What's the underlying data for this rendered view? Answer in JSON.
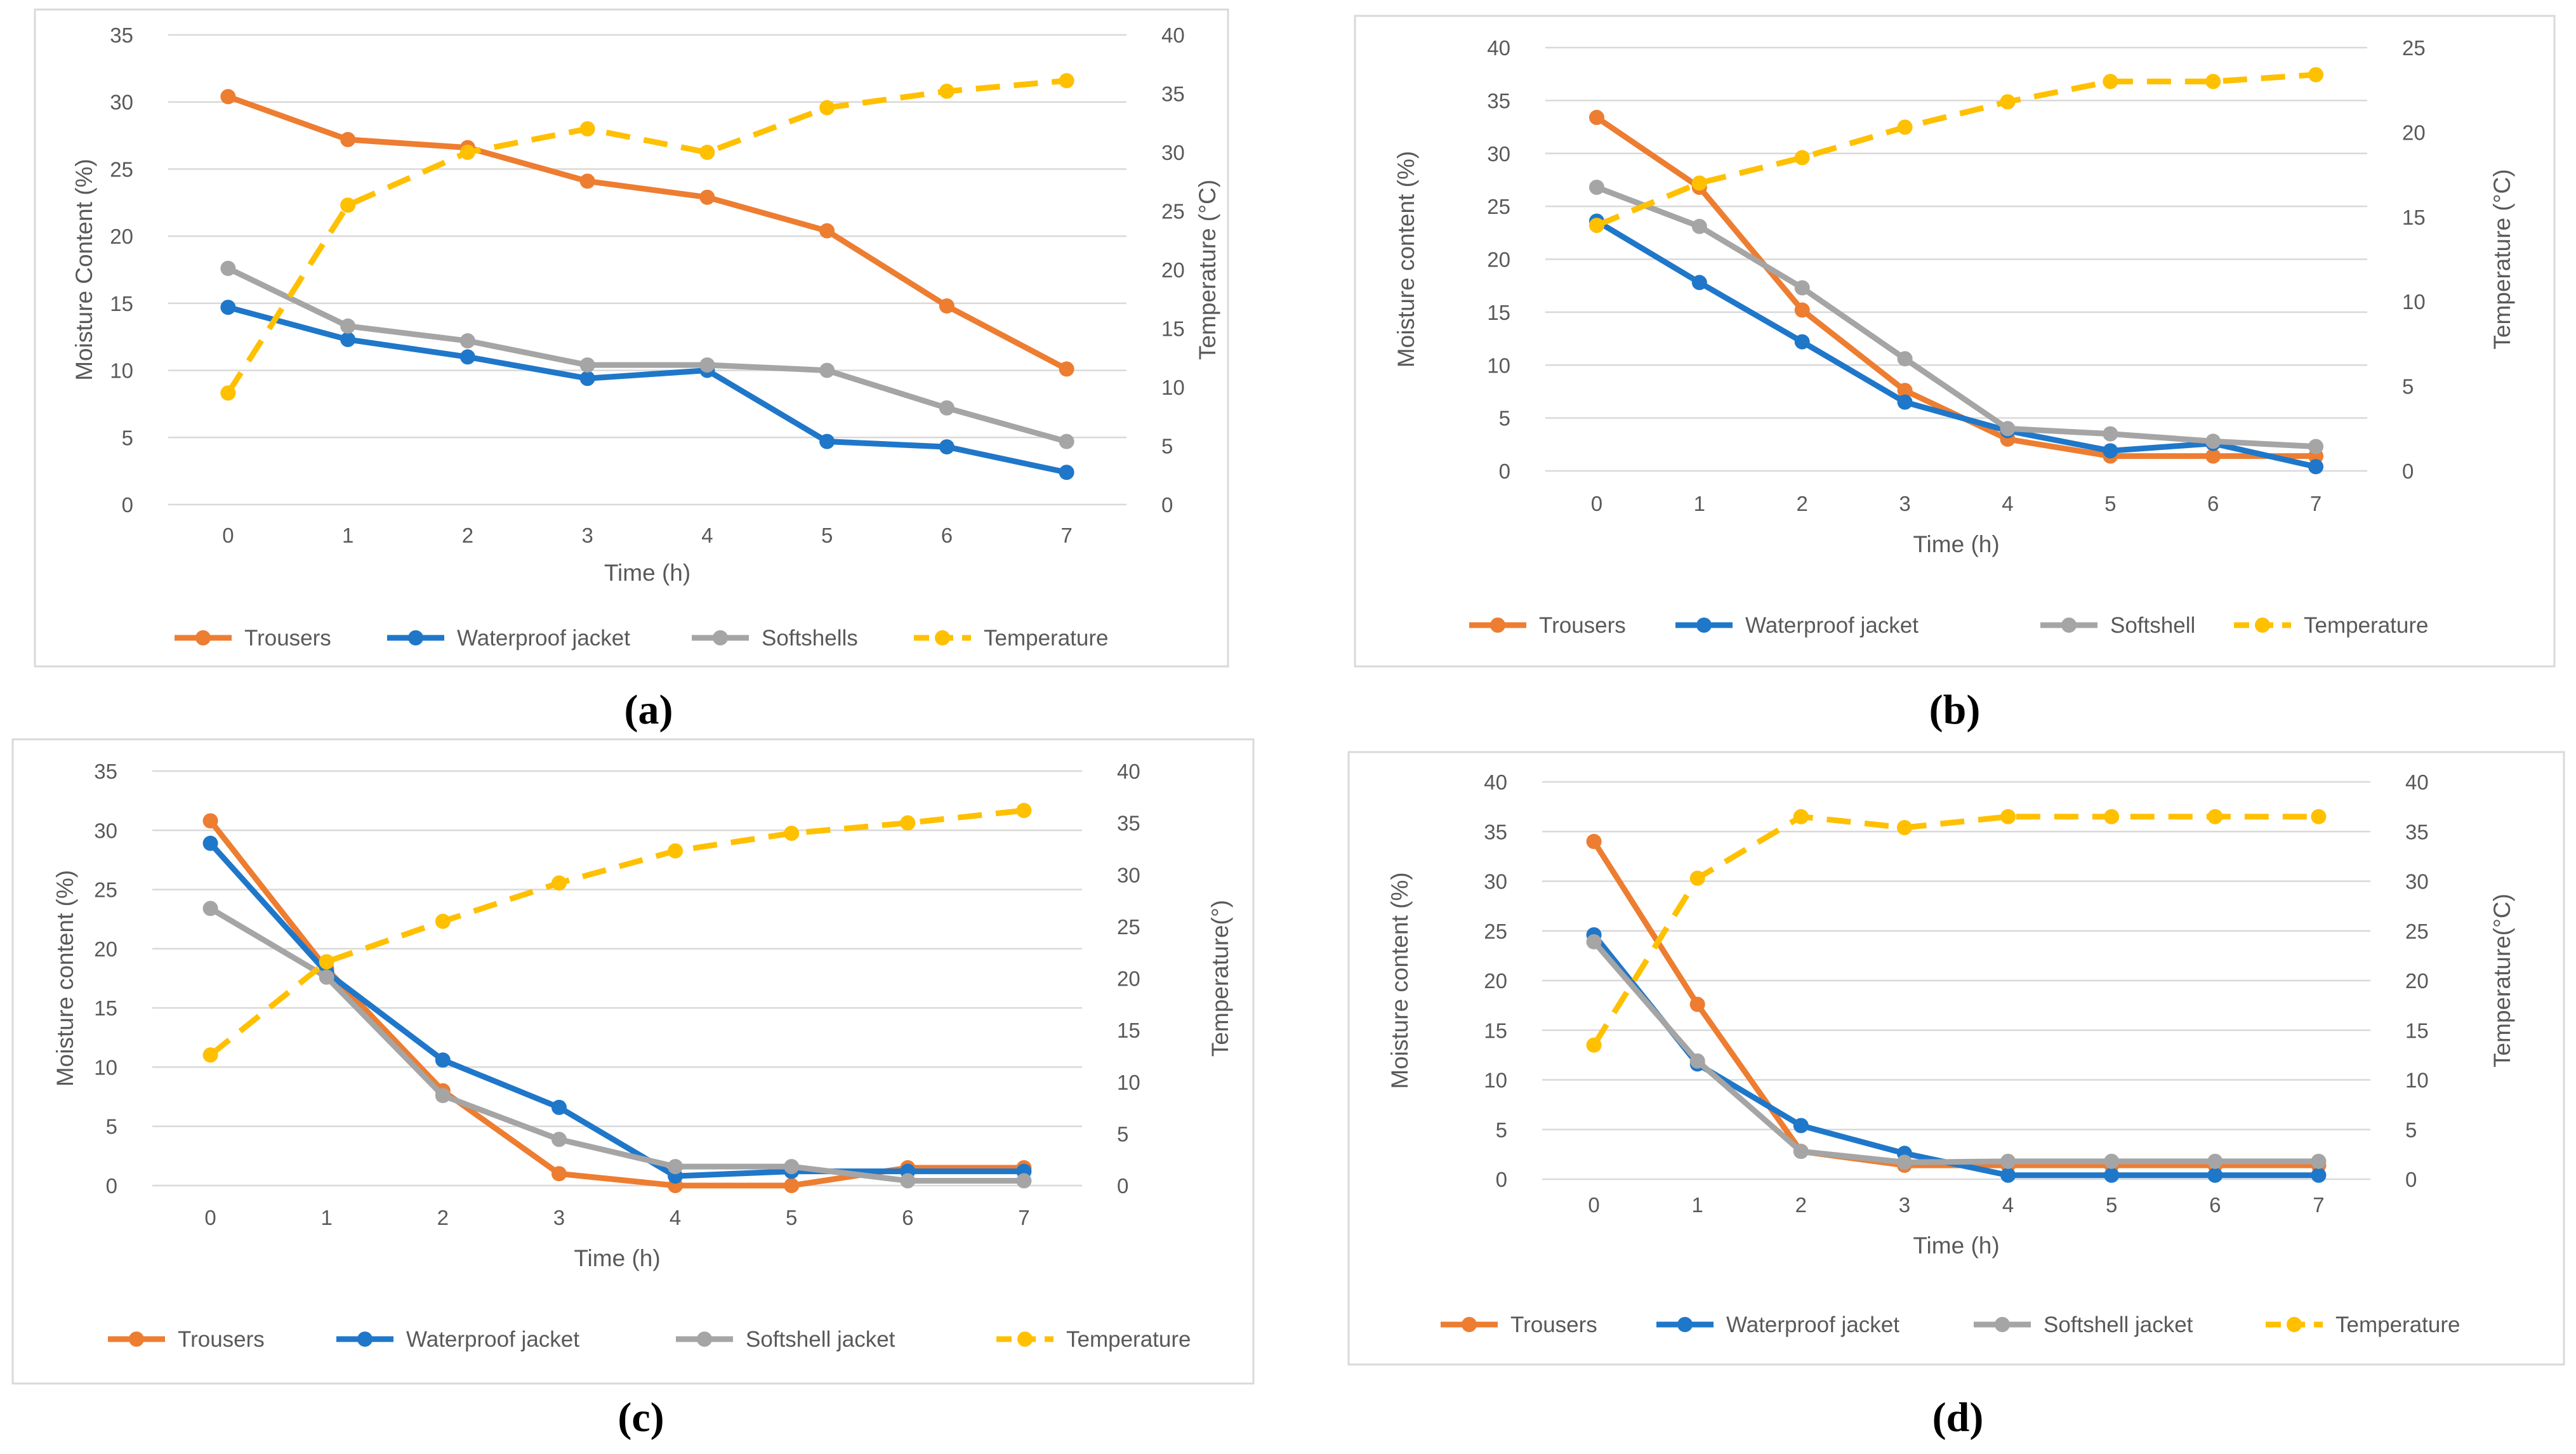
{
  "colors": {
    "Trousers": "#ed7d31",
    "Waterproof jacket": "#1f77c9",
    "Softshell": "#a5a5a5",
    "Temperature": "#ffc000"
  },
  "chart_data": [
    {
      "type": "line",
      "panel_label": "(a)",
      "x": [
        0,
        1,
        2,
        3,
        4,
        5,
        6,
        7
      ],
      "x_ticks": [
        "0",
        "1",
        "2",
        "3",
        "4",
        "5",
        "6",
        "7"
      ],
      "xlabel": "Time (h)",
      "ylabel": "Moisture Content (%)",
      "y2label": "Temperature (°C)",
      "ylim": [
        0,
        35
      ],
      "y_ticks": [
        "0",
        "5",
        "10",
        "15",
        "20",
        "25",
        "30",
        "35"
      ],
      "y2lim": [
        0,
        40
      ],
      "y2_ticks": [
        "0",
        "5",
        "10",
        "15",
        "20",
        "25",
        "30",
        "35",
        "40"
      ],
      "legend_position": "bottom",
      "series": [
        {
          "name": "Trousers",
          "color_key": "Trousers",
          "axis": "left",
          "dashed": false,
          "values": [
            30.4,
            27.2,
            26.6,
            24.1,
            22.9,
            20.4,
            14.8,
            10.1
          ]
        },
        {
          "name": "Waterproof jacket",
          "color_key": "Waterproof jacket",
          "axis": "left",
          "dashed": false,
          "values": [
            14.7,
            12.3,
            11.0,
            9.4,
            10.0,
            4.7,
            4.3,
            2.4
          ]
        },
        {
          "name": "Softshells",
          "color_key": "Softshell",
          "axis": "left",
          "dashed": false,
          "values": [
            17.6,
            13.3,
            12.2,
            10.4,
            10.4,
            10.0,
            7.2,
            4.7
          ]
        },
        {
          "name": "Temperature",
          "color_key": "Temperature",
          "axis": "right",
          "dashed": true,
          "values": [
            9.5,
            25.5,
            30.0,
            32.0,
            30.0,
            33.8,
            35.2,
            36.1
          ]
        }
      ]
    },
    {
      "type": "line",
      "panel_label": "(b)",
      "x": [
        0,
        1,
        2,
        3,
        4,
        5,
        6,
        7
      ],
      "x_ticks": [
        "0",
        "1",
        "2",
        "3",
        "4",
        "5",
        "6",
        "7"
      ],
      "xlabel": "Time (h)",
      "ylabel": "Moisture content (%)",
      "y2label": "Temperature (°C)",
      "ylim": [
        0,
        40
      ],
      "y_ticks": [
        "0",
        "5",
        "10",
        "15",
        "20",
        "25",
        "30",
        "35",
        "40"
      ],
      "y2lim": [
        0,
        25
      ],
      "y2_ticks": [
        "0",
        "5",
        "10",
        "15",
        "20",
        "25"
      ],
      "legend_position": "bottom",
      "series": [
        {
          "name": "Trousers",
          "color_key": "Trousers",
          "axis": "left",
          "dashed": false,
          "values": [
            33.4,
            26.8,
            15.2,
            7.6,
            3.0,
            1.4,
            1.4,
            1.4
          ]
        },
        {
          "name": "Waterproof jacket",
          "color_key": "Waterproof jacket",
          "axis": "left",
          "dashed": false,
          "values": [
            23.6,
            17.8,
            12.2,
            6.5,
            3.8,
            1.9,
            2.6,
            0.4
          ]
        },
        {
          "name": "Softshell",
          "color_key": "Softshell",
          "axis": "left",
          "dashed": false,
          "values": [
            26.8,
            23.1,
            17.3,
            10.6,
            4.0,
            3.5,
            2.8,
            2.3
          ]
        },
        {
          "name": "Temperature",
          "color_key": "Temperature",
          "axis": "right",
          "dashed": true,
          "values": [
            14.5,
            17.0,
            18.5,
            20.3,
            21.8,
            23.0,
            23.0,
            23.4
          ]
        }
      ]
    },
    {
      "type": "line",
      "panel_label": "(c)",
      "x": [
        0,
        1,
        2,
        3,
        4,
        5,
        6,
        7
      ],
      "x_ticks": [
        "0",
        "1",
        "2",
        "3",
        "4",
        "5",
        "6",
        "7"
      ],
      "xlabel": "Time (h)",
      "ylabel": "Moisture content (%)",
      "y2label": "Temperature(°)",
      "ylim": [
        0,
        35
      ],
      "y_ticks": [
        "0",
        "5",
        "10",
        "15",
        "20",
        "25",
        "30",
        "35"
      ],
      "y2lim": [
        0,
        40
      ],
      "y2_ticks": [
        "0",
        "5",
        "10",
        "15",
        "20",
        "25",
        "30",
        "35",
        "40"
      ],
      "legend_position": "bottom",
      "series": [
        {
          "name": "Trousers",
          "color_key": "Trousers",
          "axis": "left",
          "dashed": false,
          "values": [
            30.8,
            18.3,
            8.0,
            1.0,
            0.0,
            0.0,
            1.5,
            1.5
          ]
        },
        {
          "name": "Waterproof jacket",
          "color_key": "Waterproof jacket",
          "axis": "left",
          "dashed": false,
          "values": [
            28.9,
            18.0,
            10.6,
            6.6,
            0.8,
            1.2,
            1.2,
            1.2
          ]
        },
        {
          "name": "Softshell jacket",
          "color_key": "Softshell",
          "axis": "left",
          "dashed": false,
          "values": [
            23.4,
            17.6,
            7.6,
            3.9,
            1.6,
            1.6,
            0.4,
            0.4
          ]
        },
        {
          "name": "Temperature",
          "color_key": "Temperature",
          "axis": "right",
          "dashed": true,
          "values": [
            12.6,
            21.6,
            25.5,
            29.2,
            32.3,
            34.0,
            35.0,
            36.2
          ]
        }
      ]
    },
    {
      "type": "line",
      "panel_label": "(d)",
      "x": [
        0,
        1,
        2,
        3,
        4,
        5,
        6,
        7
      ],
      "x_ticks": [
        "0",
        "1",
        "2",
        "3",
        "4",
        "5",
        "6",
        "7"
      ],
      "xlabel": "Time (h)",
      "ylabel": "Moisture content (%)",
      "y2label": "Temperature(°C)",
      "ylim": [
        0,
        40
      ],
      "y_ticks": [
        "0",
        "5",
        "10",
        "15",
        "20",
        "25",
        "30",
        "35",
        "40"
      ],
      "y2lim": [
        0,
        40
      ],
      "y2_ticks": [
        "0",
        "5",
        "10",
        "15",
        "20",
        "25",
        "30",
        "35",
        "40"
      ],
      "legend_position": "bottom",
      "series": [
        {
          "name": "Trousers",
          "color_key": "Trousers",
          "axis": "left",
          "dashed": false,
          "values": [
            34.0,
            17.6,
            2.8,
            1.4,
            1.4,
            1.4,
            1.4,
            1.4
          ]
        },
        {
          "name": "Waterproof jacket",
          "color_key": "Waterproof jacket",
          "axis": "left",
          "dashed": false,
          "values": [
            24.6,
            11.6,
            5.4,
            2.6,
            0.4,
            0.4,
            0.4,
            0.4
          ]
        },
        {
          "name": "Softshell jacket",
          "color_key": "Softshell",
          "axis": "left",
          "dashed": false,
          "values": [
            23.9,
            11.9,
            2.8,
            1.7,
            1.8,
            1.8,
            1.8,
            1.8
          ]
        },
        {
          "name": "Temperature",
          "color_key": "Temperature",
          "axis": "right",
          "dashed": true,
          "values": [
            13.5,
            30.3,
            36.5,
            35.4,
            36.5,
            36.5,
            36.5,
            36.5
          ]
        }
      ]
    }
  ]
}
